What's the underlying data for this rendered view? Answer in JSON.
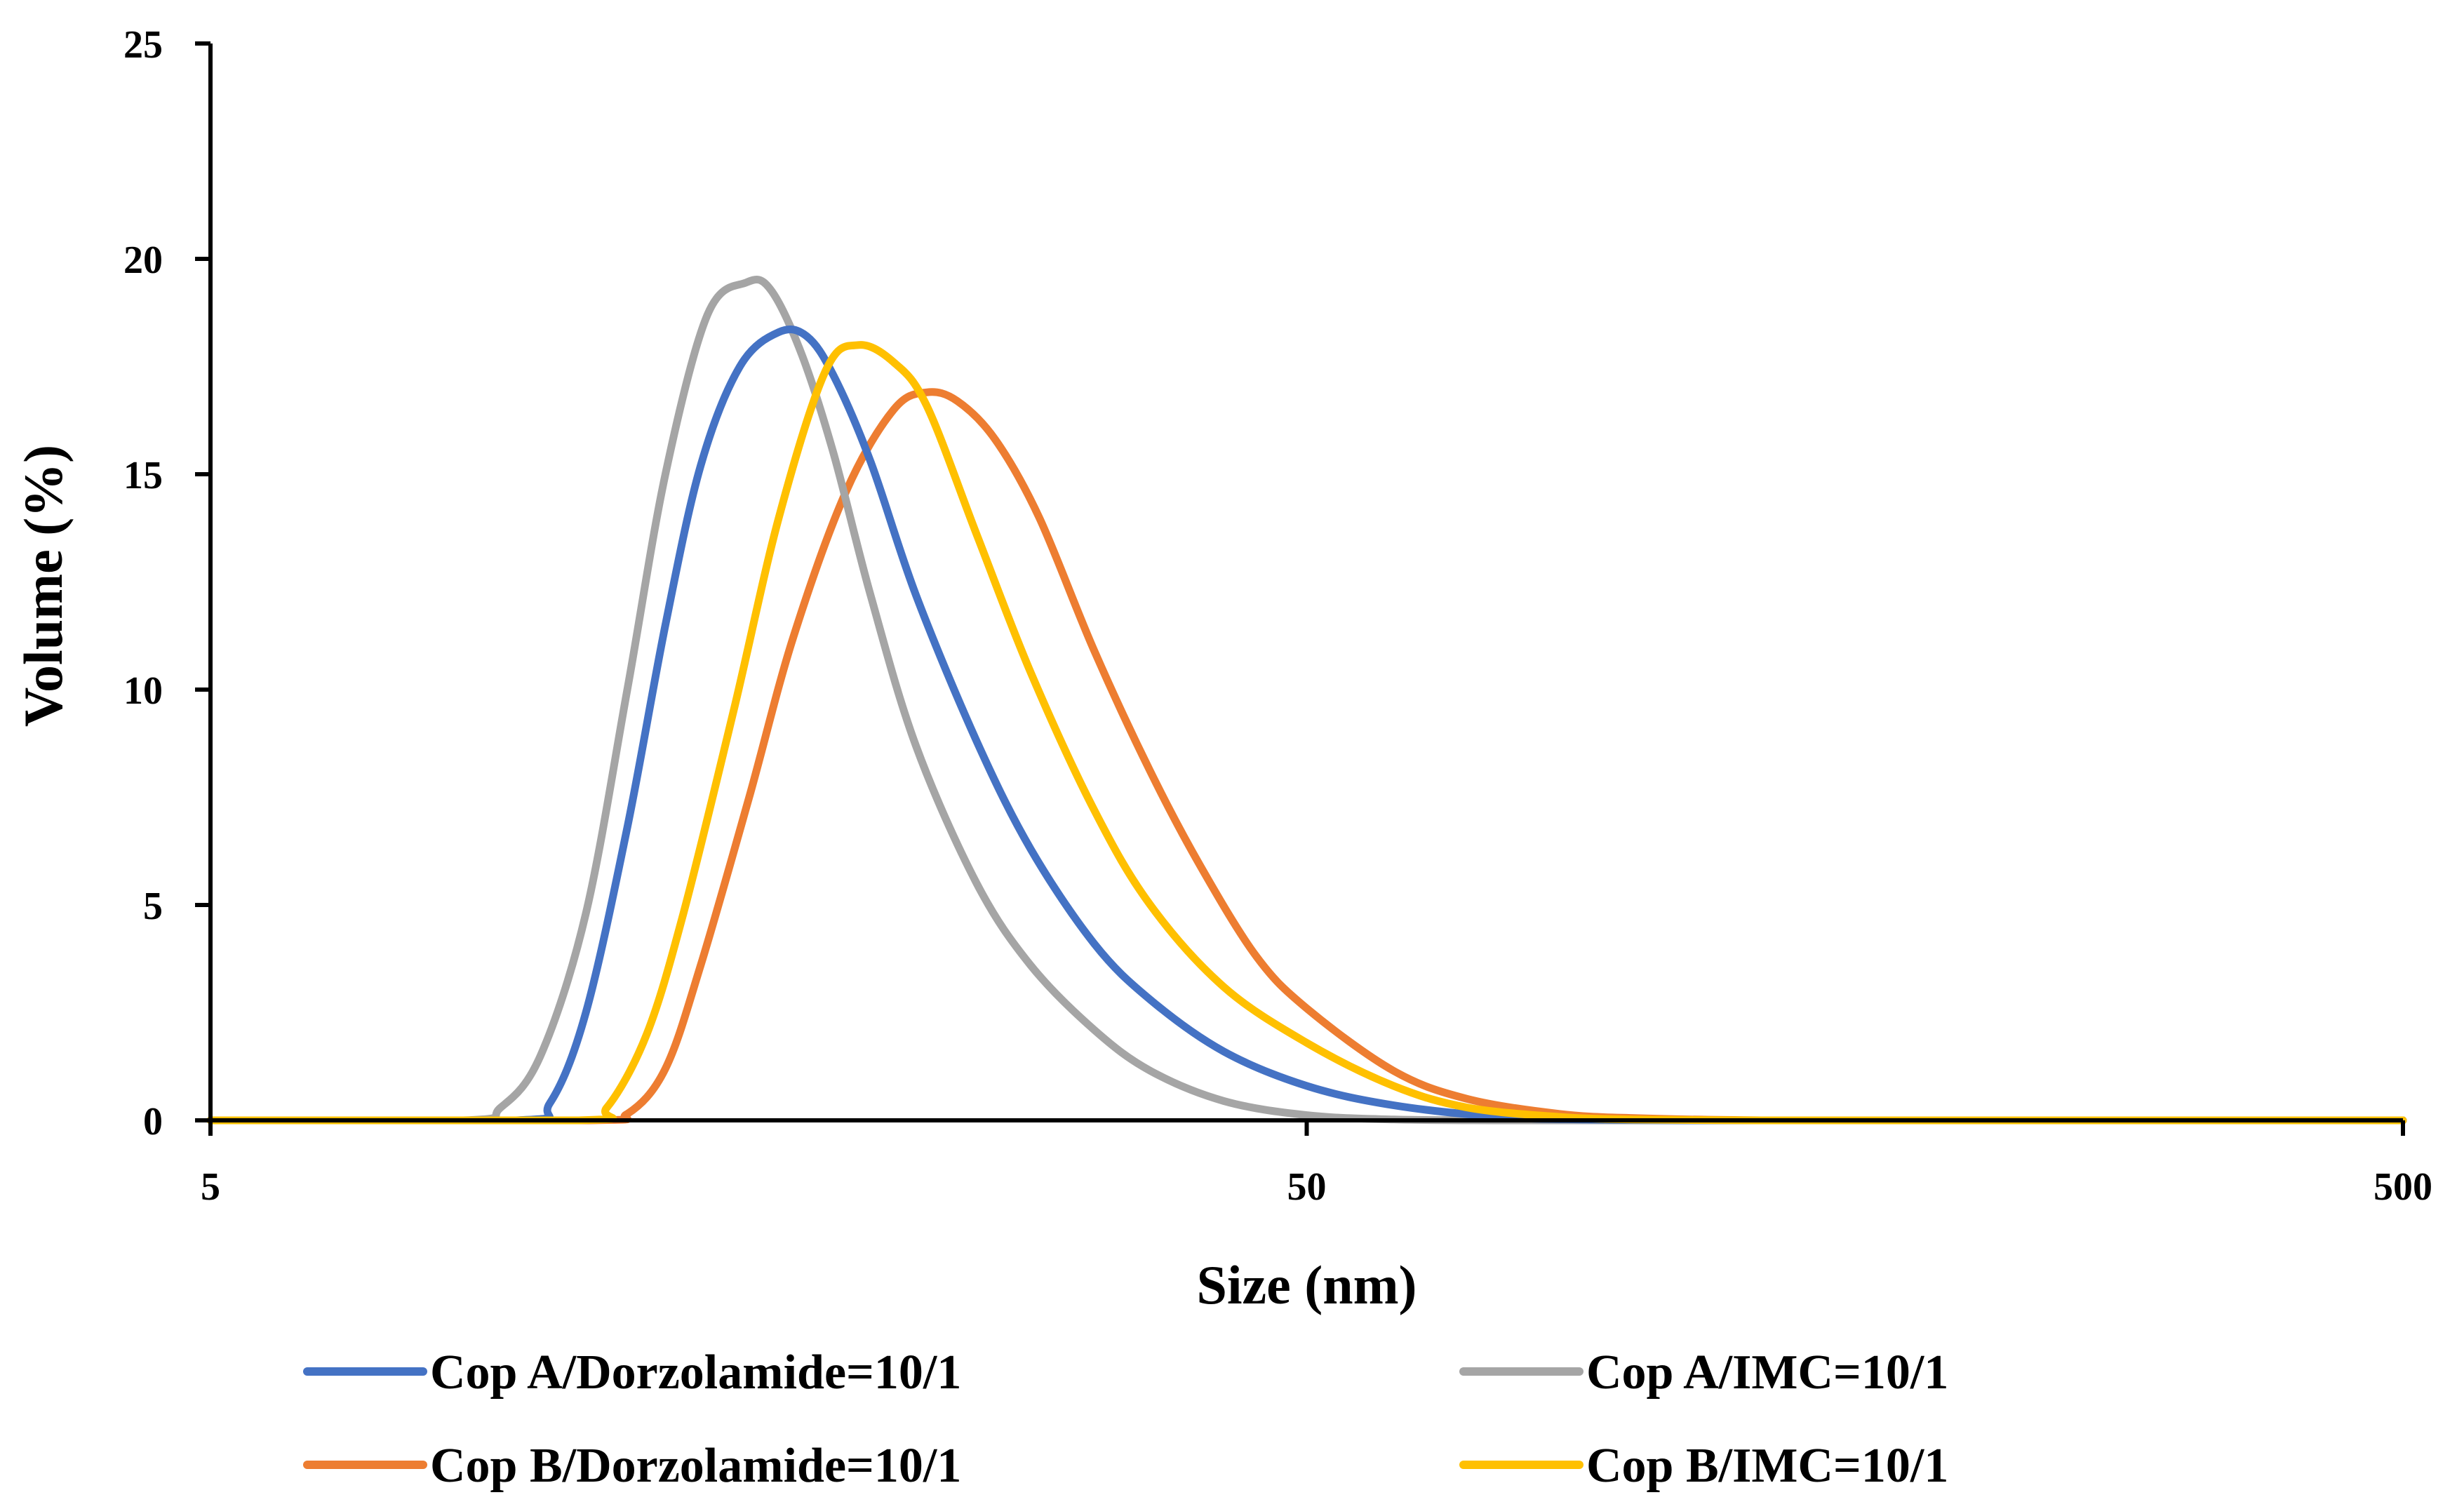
{
  "chart_data": {
    "type": "line",
    "xscale": "log",
    "xlabel": "Size (nm)",
    "ylabel": "Volume  (%)",
    "xlim": [
      5,
      500
    ],
    "ylim": [
      0,
      25
    ],
    "xticks": [
      5,
      50,
      500
    ],
    "yticks": [
      0,
      5,
      10,
      15,
      20,
      25
    ],
    "grid": false,
    "legend_position": "bottom",
    "series": [
      {
        "name": "Cop A/Dorzolamide=10/1",
        "color": "#4472C4",
        "x": [
          5,
          9.5,
          10.2,
          11,
          12,
          13,
          14,
          15.2,
          16.5,
          17.5,
          18.5,
          20,
          22,
          25,
          28,
          32,
          36,
          42,
          50,
          60,
          75,
          90,
          110,
          150,
          200,
          300,
          500
        ],
        "y": [
          0,
          0,
          0.4,
          2.5,
          6.8,
          11.5,
          15.2,
          17.5,
          18.3,
          18.2,
          17.3,
          15.3,
          12.2,
          8.8,
          6.3,
          4.1,
          2.8,
          1.6,
          0.8,
          0.35,
          0.08,
          0.02,
          0,
          0,
          0,
          0,
          0
        ]
      },
      {
        "name": "Cop A/IMC=10/1",
        "color": "#A5A5A5",
        "x": [
          5,
          8.5,
          9.2,
          10,
          11,
          12,
          13,
          14.2,
          15.4,
          16.2,
          17.3,
          18.5,
          20,
          22,
          25,
          28,
          32,
          36,
          42,
          50,
          60,
          75,
          100,
          500
        ],
        "y": [
          0,
          0,
          0.3,
          1.5,
          4.8,
          10,
          15,
          18.7,
          19.45,
          19.3,
          17.8,
          15.5,
          12.2,
          8.7,
          5.5,
          3.6,
          2.1,
          1.15,
          0.45,
          0.12,
          0.02,
          0,
          0,
          0
        ]
      },
      {
        "name": "Cop B/Dorzolamide=10/1",
        "color": "#ED7D31",
        "x": [
          5,
          11,
          12,
          13,
          14,
          15.5,
          17,
          19,
          21,
          22.5,
          24,
          26,
          28.5,
          32,
          36,
          40,
          45,
          50,
          60,
          70,
          85,
          100,
          130,
          170,
          220,
          500
        ],
        "y": [
          0,
          0,
          0.15,
          1.2,
          3.6,
          7.5,
          11.2,
          14.6,
          16.5,
          16.9,
          16.7,
          15.8,
          14,
          10.9,
          8.1,
          5.9,
          3.8,
          2.6,
          1.15,
          0.5,
          0.15,
          0.05,
          0,
          0,
          0,
          0
        ]
      },
      {
        "name": "Cop B/IMC=10/1",
        "color": "#FFC000",
        "x": [
          5,
          10.8,
          11.5,
          12.5,
          13.5,
          15,
          16.5,
          18.2,
          19.5,
          21,
          22.5,
          25,
          28,
          32,
          36,
          42,
          50,
          60,
          70,
          85,
          100,
          130,
          170,
          500
        ],
        "y": [
          0,
          0,
          0.3,
          2,
          4.8,
          9.5,
          14,
          17.4,
          18,
          17.6,
          16.6,
          13.6,
          10.4,
          7.2,
          5,
          3.1,
          1.8,
          0.8,
          0.3,
          0.08,
          0.02,
          0,
          0,
          0
        ]
      }
    ]
  }
}
